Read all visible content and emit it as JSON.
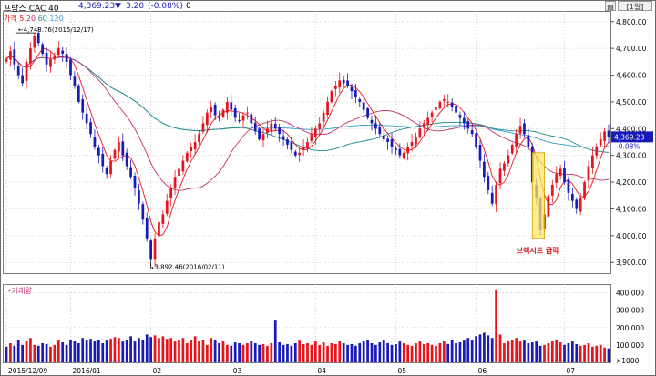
{
  "header": {
    "title": "프랑스 CAC 40",
    "price": "4,369.23",
    "change_arrow": "▼",
    "change": "3.20",
    "change_pct": "(-0.08%)",
    "extra": "0",
    "period_button": "[1일]"
  },
  "colors": {
    "up": "#e8141c",
    "down": "#1a1ab8",
    "ma5": "#e8141c",
    "ma20": "#c0306a",
    "ma60": "#1a8c8c",
    "ma120": "#3aa0d0",
    "annotation_box": "#ffe566",
    "grid": "#c8c8c8"
  },
  "chart_data": [
    {
      "type": "candlestick",
      "title": "",
      "legend": [
        {
          "name": "가격",
          "color": "#e8141c"
        },
        {
          "name": "5",
          "color": "#e8141c"
        },
        {
          "name": "20",
          "color": "#c0306a"
        },
        {
          "name": "60",
          "color": "#1a8c8c"
        },
        {
          "name": "120",
          "color": "#3aa0d0"
        }
      ],
      "x_tick_labels": [
        "2015/12/09",
        "2016/01",
        "02",
        "03",
        "04",
        "05",
        "06",
        "07"
      ],
      "x_ticks": [
        {
          "label": "2015/12/09",
          "index": 0
        },
        {
          "label": "2016/01",
          "index": 16
        },
        {
          "label": "02",
          "index": 36
        },
        {
          "label": "03",
          "index": 56
        },
        {
          "label": "04",
          "index": 77
        },
        {
          "label": "05",
          "index": 97
        },
        {
          "label": "06",
          "index": 117
        },
        {
          "label": "07",
          "index": 139
        }
      ],
      "y_tick_labels": [
        "4,800.00",
        "4,700.00",
        "4,600.00",
        "4,500.00",
        "4,400.00",
        "4,300.00",
        "4,200.00",
        "4,100.00",
        "4,000.00",
        "3,900.00"
      ],
      "ylim": [
        3860,
        4840
      ],
      "last_price_label": "4,369.23",
      "last_change_label": "-0.08%",
      "high_label": "4,748.76(2015/12/17)",
      "low_label": "3,892.46(2016/02/11)",
      "annotation": "브렉시트 급락",
      "grid": true,
      "close": [
        4660,
        4690,
        4640,
        4600,
        4570,
        4650,
        4700,
        4748,
        4720,
        4680,
        4640,
        4660,
        4670,
        4700,
        4680,
        4650,
        4600,
        4560,
        4500,
        4460,
        4420,
        4380,
        4330,
        4300,
        4260,
        4230,
        4280,
        4320,
        4350,
        4300,
        4260,
        4220,
        4180,
        4120,
        4060,
        3990,
        3910,
        3990,
        4050,
        4080,
        4130,
        4180,
        4220,
        4250,
        4280,
        4310,
        4330,
        4350,
        4380,
        4420,
        4460,
        4480,
        4450,
        4440,
        4470,
        4500,
        4470,
        4440,
        4430,
        4450,
        4460,
        4420,
        4390,
        4360,
        4380,
        4400,
        4420,
        4400,
        4380,
        4360,
        4340,
        4320,
        4300,
        4310,
        4330,
        4350,
        4380,
        4400,
        4420,
        4460,
        4500,
        4540,
        4560,
        4580,
        4570,
        4560,
        4540,
        4520,
        4500,
        4470,
        4440,
        4420,
        4400,
        4380,
        4360,
        4350,
        4330,
        4320,
        4300,
        4310,
        4330,
        4350,
        4370,
        4400,
        4420,
        4440,
        4460,
        4480,
        4500,
        4510,
        4500,
        4480,
        4460,
        4440,
        4420,
        4400,
        4380,
        4330,
        4280,
        4220,
        4170,
        4120,
        4190,
        4250,
        4270,
        4300,
        4340,
        4380,
        4410,
        4380,
        4330,
        4200,
        4140,
        4020,
        4080,
        4150,
        4190,
        4230,
        4250,
        4200,
        4160,
        4130,
        4100,
        4140,
        4200,
        4260,
        4300,
        4330,
        4360,
        4390,
        4369
      ]
    },
    {
      "type": "bar",
      "title": "거래량",
      "y_tick_labels": [
        "400,000",
        "300,000",
        "200,000",
        "100,000"
      ],
      "y_unit": "×1000",
      "ylim": [
        0,
        450000
      ],
      "values": [
        90,
        110,
        95,
        130,
        100,
        120,
        140,
        100,
        95,
        110,
        105,
        90,
        100,
        125,
        115,
        100,
        130,
        120,
        110,
        140,
        125,
        135,
        120,
        130,
        110,
        125,
        135,
        145,
        140,
        120,
        130,
        150,
        120,
        140,
        130,
        160,
        145,
        155,
        140,
        150,
        135,
        140,
        120,
        130,
        140,
        110,
        125,
        150,
        120,
        130,
        100,
        140,
        130,
        110,
        120,
        100,
        95,
        115,
        110,
        100,
        110,
        120,
        110,
        100,
        105,
        95,
        110,
        240,
        115,
        100,
        105,
        95,
        110,
        125,
        105,
        110,
        100,
        120,
        100,
        115,
        95,
        110,
        105,
        120,
        110,
        100,
        105,
        95,
        110,
        120,
        130,
        110,
        100,
        115,
        125,
        110,
        100,
        105,
        120,
        110,
        100,
        95,
        110,
        120,
        105,
        110,
        100,
        95,
        110,
        120,
        105,
        130,
        110,
        115,
        125,
        140,
        130,
        150,
        160,
        170,
        155,
        140,
        420,
        160,
        110,
        120,
        130,
        140,
        120,
        125,
        110,
        115,
        120,
        95,
        100,
        110,
        120,
        130,
        115,
        100,
        110,
        120,
        105,
        95,
        100,
        110,
        90,
        95,
        100,
        85,
        80
      ],
      "colors_up_down": [
        "d",
        "u",
        "d",
        "d",
        "d",
        "u",
        "u",
        "u",
        "d",
        "d",
        "d",
        "u",
        "u",
        "u",
        "d",
        "d",
        "d",
        "d",
        "d",
        "d",
        "d",
        "d",
        "d",
        "d",
        "d",
        "d",
        "u",
        "u",
        "u",
        "d",
        "d",
        "d",
        "d",
        "d",
        "d",
        "d",
        "d",
        "u",
        "u",
        "u",
        "u",
        "u",
        "u",
        "u",
        "u",
        "u",
        "u",
        "u",
        "u",
        "u",
        "u",
        "u",
        "d",
        "d",
        "u",
        "u",
        "d",
        "d",
        "d",
        "u",
        "u",
        "d",
        "d",
        "d",
        "u",
        "u",
        "u",
        "d",
        "d",
        "d",
        "d",
        "d",
        "d",
        "u",
        "u",
        "u",
        "u",
        "u",
        "u",
        "u",
        "u",
        "u",
        "u",
        "u",
        "d",
        "d",
        "d",
        "d",
        "d",
        "d",
        "d",
        "d",
        "d",
        "d",
        "d",
        "d",
        "d",
        "d",
        "d",
        "u",
        "u",
        "u",
        "u",
        "u",
        "u",
        "u",
        "u",
        "u",
        "u",
        "u",
        "d",
        "d",
        "d",
        "d",
        "d",
        "d",
        "d",
        "d",
        "d",
        "d",
        "d",
        "d",
        "u",
        "u",
        "u",
        "u",
        "u",
        "u",
        "u",
        "d",
        "d",
        "d",
        "d",
        "d",
        "u",
        "u",
        "u",
        "u",
        "u",
        "d",
        "d",
        "d",
        "d",
        "u",
        "u",
        "u",
        "u",
        "u",
        "u",
        "u",
        "d"
      ]
    }
  ]
}
